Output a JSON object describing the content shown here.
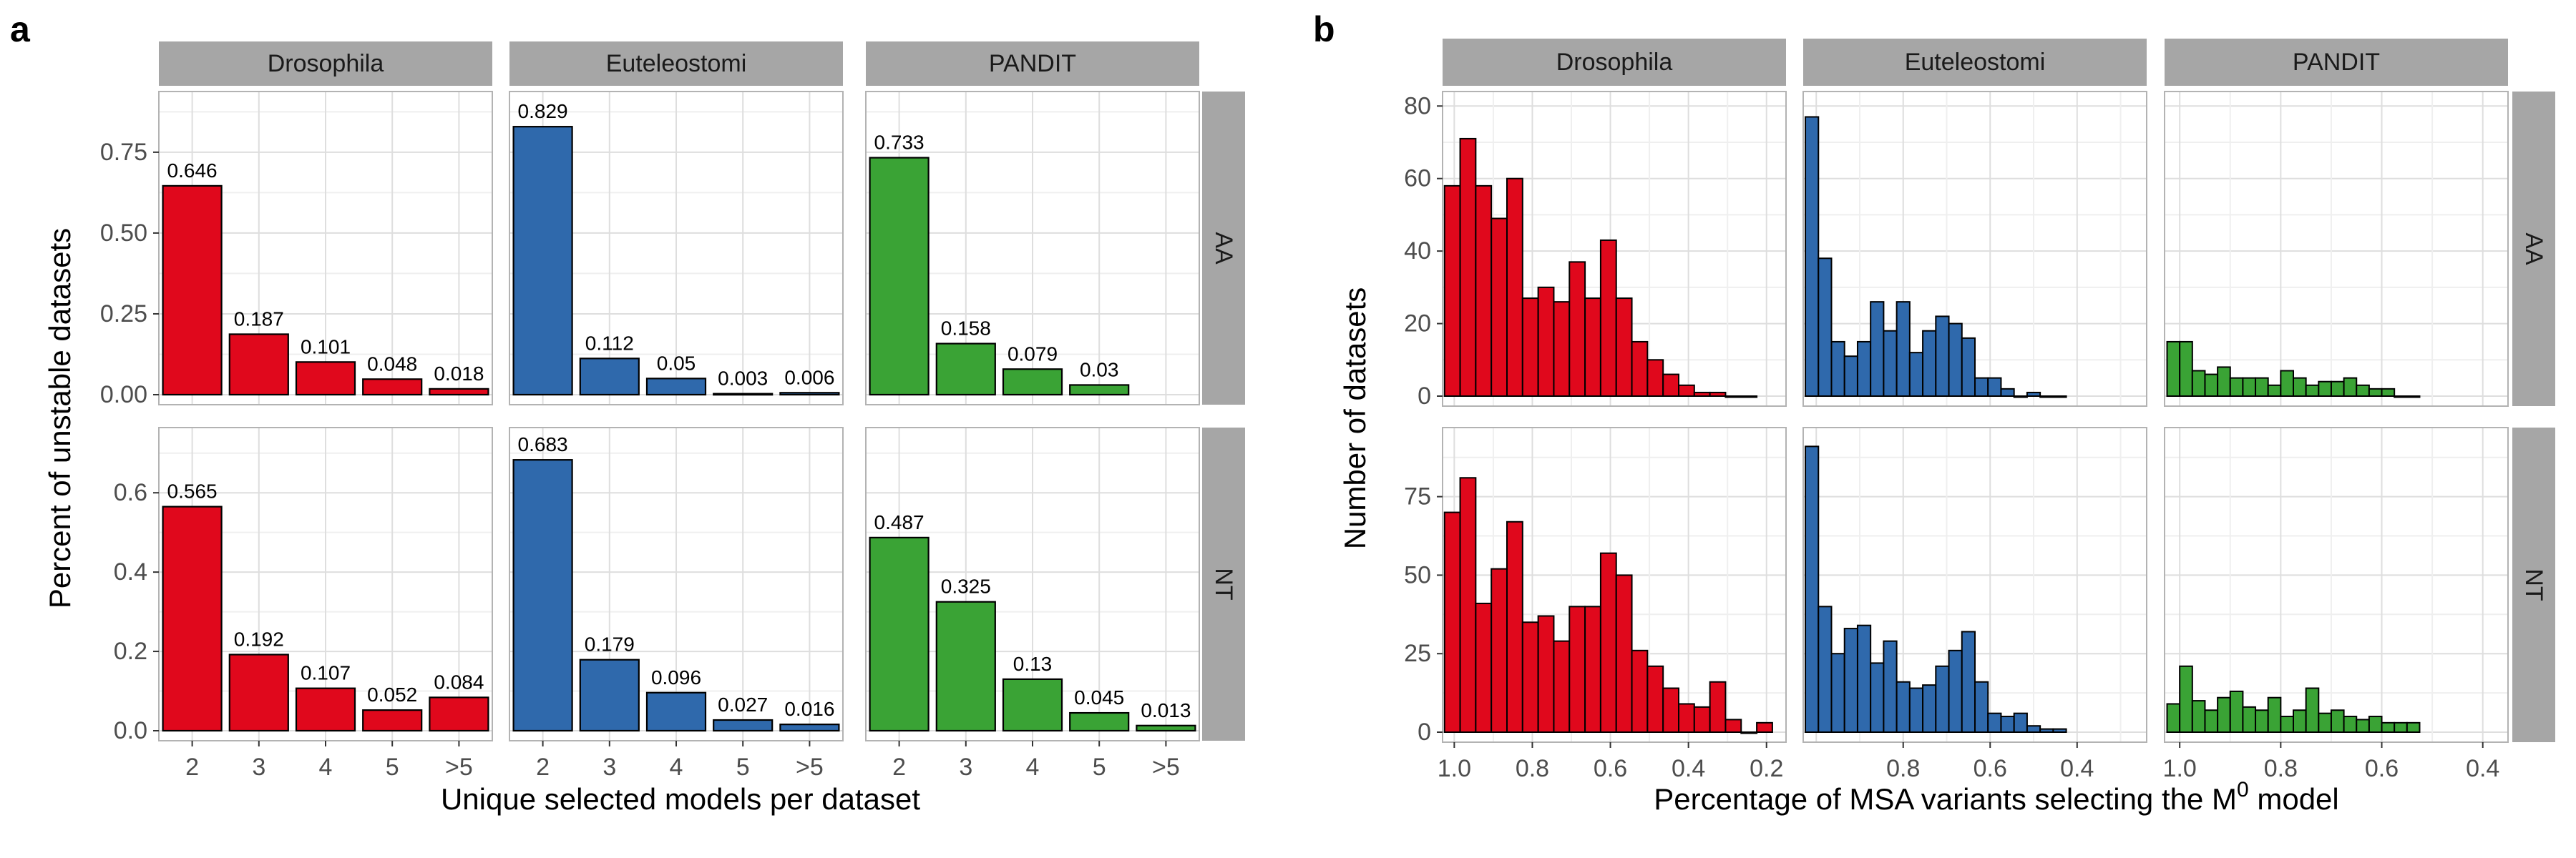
{
  "panel_a": {
    "letter": "a",
    "columns": [
      "Drosophila",
      "Euteleostomi",
      "PANDIT"
    ],
    "rows": [
      "AA",
      "NT"
    ],
    "colors": {
      "Drosophila": "#e0081c",
      "Euteleostomi": "#2f69ac",
      "PANDIT": "#3aa335"
    }
  },
  "panel_b": {
    "letter": "b",
    "columns": [
      "Drosophila",
      "Euteleostomi",
      "PANDIT"
    ],
    "rows": [
      "AA",
      "NT"
    ],
    "colors": {
      "Drosophila": "#e0081c",
      "Euteleostomi": "#2f69ac",
      "PANDIT": "#3aa335"
    }
  },
  "chart_data": [
    {
      "type": "bar",
      "panel": "a",
      "xlabel": "Unique selected models per dataset",
      "ylabel": "Percent of unstable datasets",
      "categories": [
        "2",
        "3",
        "4",
        "5",
        ">5"
      ],
      "facet_columns": [
        "Drosophila",
        "Euteleostomi",
        "PANDIT"
      ],
      "facet_rows": [
        "AA",
        "NT"
      ],
      "rows": [
        {
          "row": "AA",
          "ylim": [
            0,
            0.92
          ],
          "yticks": [
            0.0,
            0.25,
            0.5,
            0.75
          ],
          "ytick_labels": [
            "0.00",
            "0.25",
            "0.50",
            "0.75"
          ],
          "series": [
            {
              "name": "Drosophila",
              "values": [
                0.646,
                0.187,
                0.101,
                0.048,
                0.018
              ],
              "labels": [
                "0.646",
                "0.187",
                "0.101",
                "0.048",
                "0.018"
              ]
            },
            {
              "name": "Euteleostomi",
              "values": [
                0.829,
                0.112,
                0.05,
                0.003,
                0.006
              ],
              "labels": [
                "0.829",
                "0.112",
                "0.05",
                "0.003",
                "0.006"
              ]
            },
            {
              "name": "PANDIT",
              "values": [
                0.733,
                0.158,
                0.079,
                0.03,
                null
              ],
              "labels": [
                "0.733",
                "0.158",
                "0.079",
                "0.03",
                ""
              ]
            }
          ]
        },
        {
          "row": "NT",
          "ylim": [
            0,
            0.75
          ],
          "yticks": [
            0.0,
            0.2,
            0.4,
            0.6
          ],
          "ytick_labels": [
            "0.0",
            "0.2",
            "0.4",
            "0.6"
          ],
          "series": [
            {
              "name": "Drosophila",
              "values": [
                0.565,
                0.192,
                0.107,
                0.052,
                0.084
              ],
              "labels": [
                "0.565",
                "0.192",
                "0.107",
                "0.052",
                "0.084"
              ]
            },
            {
              "name": "Euteleostomi",
              "values": [
                0.683,
                0.179,
                0.096,
                0.027,
                0.016
              ],
              "labels": [
                "0.683",
                "0.179",
                "0.096",
                "0.027",
                "0.016"
              ]
            },
            {
              "name": "PANDIT",
              "values": [
                0.487,
                0.325,
                0.13,
                0.045,
                0.013
              ],
              "labels": [
                "0.487",
                "0.325",
                "0.13",
                "0.045",
                "0.013"
              ]
            }
          ]
        }
      ]
    },
    {
      "type": "bar",
      "subtype": "histogram",
      "panel": "b",
      "xlabel_text": "Percentage of MSA variants selecting the M",
      "xlabel_sup": "0",
      "xlabel_suffix": " model",
      "ylabel": "Number of datasets",
      "facet_columns": [
        "Drosophila",
        "Euteleostomi",
        "PANDIT"
      ],
      "facet_rows": [
        "AA",
        "NT"
      ],
      "x_reversed": true,
      "columns": [
        {
          "name": "Drosophila",
          "xlim": [
            1.03,
            0.15
          ],
          "xticks": [
            1.0,
            0.8,
            0.6,
            0.4,
            0.2
          ],
          "xtick_labels": [
            "1.0",
            "0.8",
            "0.6",
            "0.4",
            "0.2"
          ],
          "bin_start": 1.025,
          "bin_width": 0.04
        },
        {
          "name": "Euteleostomi",
          "xlim": [
            1.03,
            0.24
          ],
          "xticks": [
            0.8,
            0.6,
            0.4
          ],
          "xtick_labels": [
            "0.8",
            "0.6",
            "0.4"
          ],
          "bin_start": 1.025,
          "bin_width": 0.03
        },
        {
          "name": "PANDIT",
          "xlim": [
            1.03,
            0.35
          ],
          "xticks": [
            1.0,
            0.8,
            0.6,
            0.4
          ],
          "xtick_labels": [
            "1.0",
            "0.8",
            "0.6",
            "0.4"
          ],
          "bin_start": 1.025,
          "bin_width": 0.025
        }
      ],
      "rows": [
        {
          "row": "AA",
          "ylim": [
            0,
            84
          ],
          "yticks": [
            0,
            20,
            40,
            60,
            80
          ],
          "ytick_labels": [
            "0",
            "20",
            "40",
            "60",
            "80"
          ],
          "series": [
            {
              "name": "Drosophila",
              "counts": [
                58,
                71,
                58,
                49,
                60,
                27,
                30,
                26,
                37,
                27,
                43,
                27,
                15,
                10,
                6,
                3,
                1,
                1,
                0,
                0
              ]
            },
            {
              "name": "Euteleostomi",
              "counts": [
                77,
                38,
                15,
                11,
                15,
                26,
                18,
                26,
                12,
                18,
                22,
                20,
                16,
                5,
                5,
                2,
                0,
                1,
                0,
                0
              ]
            },
            {
              "name": "PANDIT",
              "counts": [
                15,
                15,
                7,
                6,
                8,
                5,
                5,
                5,
                3,
                7,
                5,
                3,
                4,
                4,
                5,
                3,
                2,
                2,
                0,
                0
              ]
            }
          ]
        },
        {
          "row": "NT",
          "ylim": [
            0,
            97
          ],
          "yticks": [
            0,
            25,
            50,
            75
          ],
          "ytick_labels": [
            "0",
            "25",
            "50",
            "75"
          ],
          "series": [
            {
              "name": "Drosophila",
              "counts": [
                70,
                81,
                41,
                52,
                67,
                35,
                37,
                29,
                40,
                40,
                57,
                50,
                26,
                21,
                14,
                9,
                8,
                16,
                4,
                0,
                3
              ]
            },
            {
              "name": "Euteleostomi",
              "counts": [
                91,
                40,
                25,
                33,
                34,
                22,
                29,
                16,
                14,
                15,
                21,
                26,
                32,
                16,
                6,
                5,
                6,
                2,
                1,
                1
              ]
            },
            {
              "name": "PANDIT",
              "counts": [
                9,
                21,
                10,
                7,
                11,
                13,
                8,
                7,
                11,
                5,
                7,
                14,
                6,
                7,
                5,
                4,
                5,
                3,
                3,
                3
              ]
            }
          ]
        }
      ]
    }
  ]
}
